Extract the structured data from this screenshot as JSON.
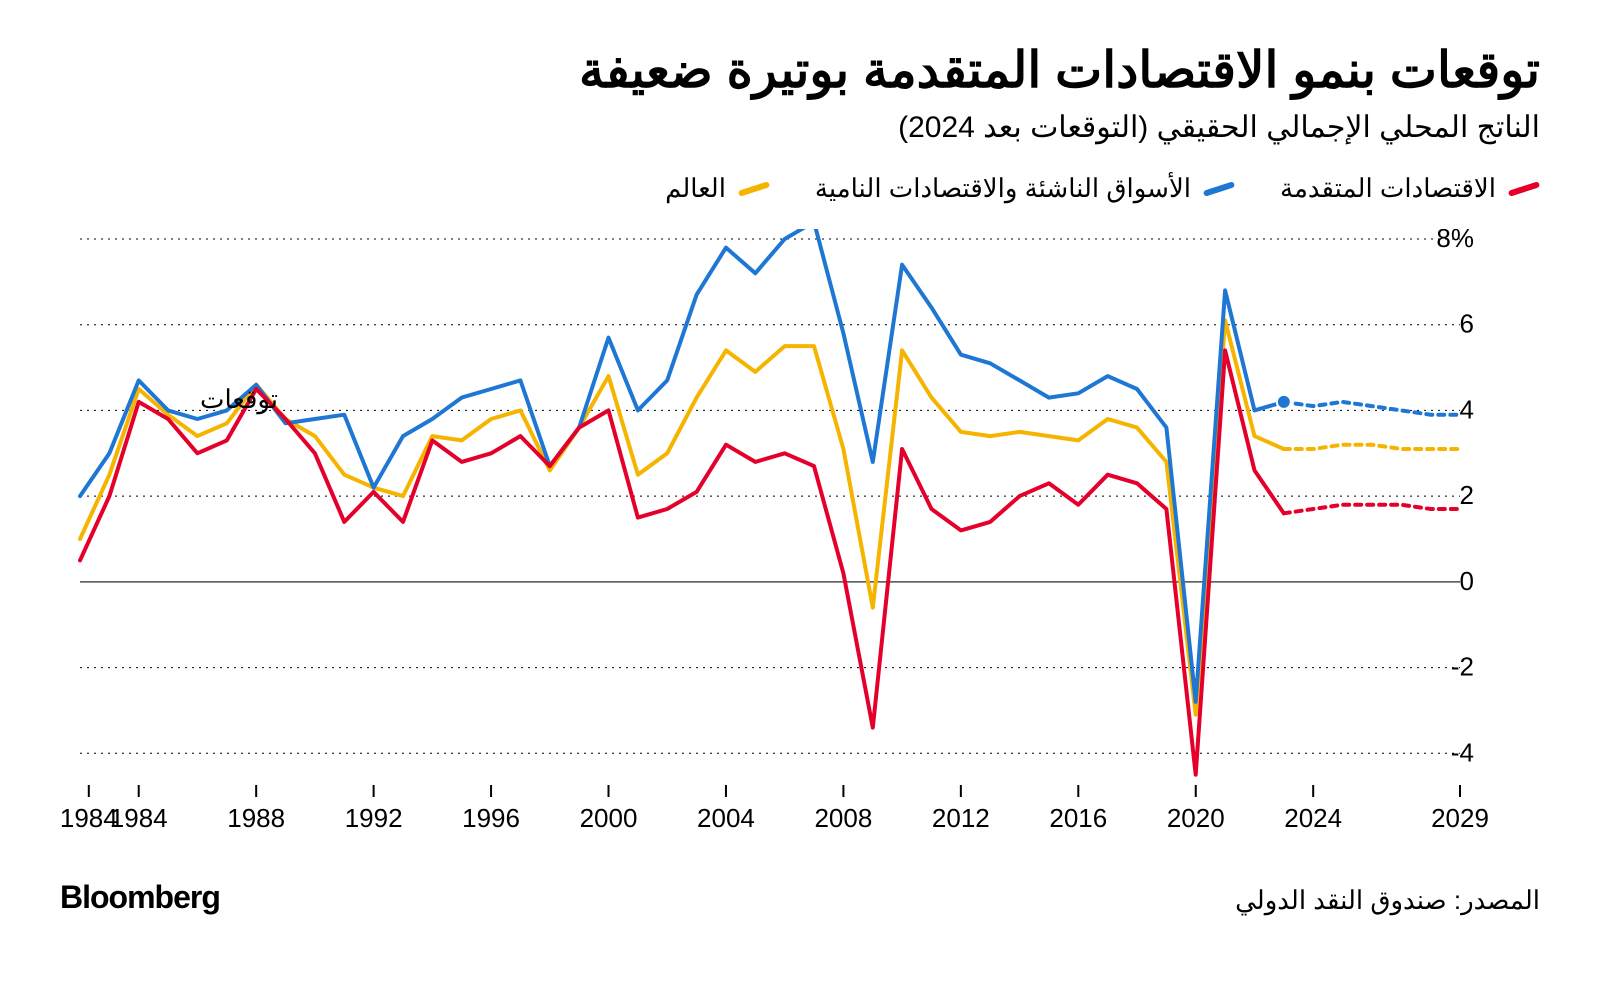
{
  "title": "توقعات بنمو الاقتصادات المتقدمة بوتيرة ضعيفة",
  "subtitle": "الناتج المحلي الإجمالي الحقيقي (التوقعات بعد 2024)",
  "legend": {
    "advanced": {
      "label": "الاقتصادات المتقدمة",
      "color": "#e4002b"
    },
    "emerging": {
      "label": "الأسواق الناشئة والاقتصادات النامية",
      "color": "#1f77d4"
    },
    "world": {
      "label": "العالم",
      "color": "#f5b400"
    }
  },
  "forecast_label": "توقعات",
  "source": "المصدر: صندوق النقد الدولي",
  "brand": "Bloomberg",
  "chart": {
    "type": "line",
    "background_color": "#ffffff",
    "grid_color": "#000000",
    "grid_dash": "2 5",
    "zero_line_color": "#4d4d4d",
    "line_width": 4,
    "forecast_dash": "6 6",
    "x_range": [
      1982,
      2029
    ],
    "y_range": [
      -4.6,
      8
    ],
    "y_ticks": [
      -4,
      -2,
      0,
      2,
      4,
      6,
      8
    ],
    "y_tick_labels": [
      "4-",
      "2-",
      "0",
      "2",
      "4",
      "6",
      "8%"
    ],
    "x_ticks": [
      1984,
      1984,
      1988,
      1992,
      1996,
      2000,
      2004,
      2008,
      2012,
      2016,
      2020,
      2024,
      2029
    ],
    "forecast_start": 2023,
    "label_fontsize": 26,
    "series": {
      "advanced": {
        "color": "#e4002b",
        "data": [
          [
            1982,
            0.5
          ],
          [
            1983,
            2.0
          ],
          [
            1984,
            4.2
          ],
          [
            1985,
            3.8
          ],
          [
            1986,
            3.0
          ],
          [
            1987,
            3.3
          ],
          [
            1988,
            4.5
          ],
          [
            1989,
            3.8
          ],
          [
            1990,
            3.0
          ],
          [
            1991,
            1.4
          ],
          [
            1992,
            2.1
          ],
          [
            1993,
            1.4
          ],
          [
            1994,
            3.3
          ],
          [
            1995,
            2.8
          ],
          [
            1996,
            3.0
          ],
          [
            1997,
            3.4
          ],
          [
            1998,
            2.7
          ],
          [
            1999,
            3.6
          ],
          [
            2000,
            4.0
          ],
          [
            2001,
            1.5
          ],
          [
            2002,
            1.7
          ],
          [
            2003,
            2.1
          ],
          [
            2004,
            3.2
          ],
          [
            2005,
            2.8
          ],
          [
            2006,
            3.0
          ],
          [
            2007,
            2.7
          ],
          [
            2008,
            0.2
          ],
          [
            2009,
            -3.4
          ],
          [
            2010,
            3.1
          ],
          [
            2011,
            1.7
          ],
          [
            2012,
            1.2
          ],
          [
            2013,
            1.4
          ],
          [
            2014,
            2.0
          ],
          [
            2015,
            2.3
          ],
          [
            2016,
            1.8
          ],
          [
            2017,
            2.5
          ],
          [
            2018,
            2.3
          ],
          [
            2019,
            1.7
          ],
          [
            2020,
            -4.5
          ],
          [
            2021,
            5.4
          ],
          [
            2022,
            2.6
          ],
          [
            2023,
            1.6
          ]
        ],
        "forecast": [
          [
            2023,
            1.6
          ],
          [
            2024,
            1.7
          ],
          [
            2025,
            1.8
          ],
          [
            2026,
            1.8
          ],
          [
            2027,
            1.8
          ],
          [
            2028,
            1.7
          ],
          [
            2029,
            1.7
          ]
        ]
      },
      "emerging": {
        "color": "#1f77d4",
        "data": [
          [
            1982,
            2.0
          ],
          [
            1983,
            3.0
          ],
          [
            1984,
            4.7
          ],
          [
            1985,
            4.0
          ],
          [
            1986,
            3.8
          ],
          [
            1987,
            4.0
          ],
          [
            1988,
            4.6
          ],
          [
            1989,
            3.7
          ],
          [
            1990,
            3.8
          ],
          [
            1991,
            3.9
          ],
          [
            1992,
            2.2
          ],
          [
            1993,
            3.4
          ],
          [
            1994,
            3.8
          ],
          [
            1995,
            4.3
          ],
          [
            1996,
            4.5
          ],
          [
            1997,
            4.7
          ],
          [
            1998,
            2.7
          ],
          [
            1999,
            3.6
          ],
          [
            2000,
            5.7
          ],
          [
            2001,
            4.0
          ],
          [
            2002,
            4.7
          ],
          [
            2003,
            6.7
          ],
          [
            2004,
            7.8
          ],
          [
            2005,
            7.2
          ],
          [
            2006,
            8.0
          ],
          [
            2007,
            8.4
          ],
          [
            2008,
            5.8
          ],
          [
            2009,
            2.8
          ],
          [
            2010,
            7.4
          ],
          [
            2011,
            6.4
          ],
          [
            2012,
            5.3
          ],
          [
            2013,
            5.1
          ],
          [
            2014,
            4.7
          ],
          [
            2015,
            4.3
          ],
          [
            2016,
            4.4
          ],
          [
            2017,
            4.8
          ],
          [
            2018,
            4.5
          ],
          [
            2019,
            3.6
          ],
          [
            2020,
            -2.8
          ],
          [
            2021,
            6.8
          ],
          [
            2022,
            4.0
          ],
          [
            2023,
            4.2
          ]
        ],
        "forecast": [
          [
            2023,
            4.2
          ],
          [
            2024,
            4.1
          ],
          [
            2025,
            4.2
          ],
          [
            2026,
            4.1
          ],
          [
            2027,
            4.0
          ],
          [
            2028,
            3.9
          ],
          [
            2029,
            3.9
          ]
        ],
        "marker_at": [
          2023,
          4.2
        ]
      },
      "world": {
        "color": "#f5b400",
        "data": [
          [
            1982,
            1.0
          ],
          [
            1983,
            2.5
          ],
          [
            1984,
            4.5
          ],
          [
            1985,
            3.9
          ],
          [
            1986,
            3.4
          ],
          [
            1987,
            3.7
          ],
          [
            1988,
            4.6
          ],
          [
            1989,
            3.8
          ],
          [
            1990,
            3.4
          ],
          [
            1991,
            2.5
          ],
          [
            1992,
            2.2
          ],
          [
            1993,
            2.0
          ],
          [
            1994,
            3.4
          ],
          [
            1995,
            3.3
          ],
          [
            1996,
            3.8
          ],
          [
            1997,
            4.0
          ],
          [
            1998,
            2.6
          ],
          [
            1999,
            3.6
          ],
          [
            2000,
            4.8
          ],
          [
            2001,
            2.5
          ],
          [
            2002,
            3.0
          ],
          [
            2003,
            4.3
          ],
          [
            2004,
            5.4
          ],
          [
            2005,
            4.9
          ],
          [
            2006,
            5.5
          ],
          [
            2007,
            5.5
          ],
          [
            2008,
            3.1
          ],
          [
            2009,
            -0.6
          ],
          [
            2010,
            5.4
          ],
          [
            2011,
            4.3
          ],
          [
            2012,
            3.5
          ],
          [
            2013,
            3.4
          ],
          [
            2014,
            3.5
          ],
          [
            2015,
            3.4
          ],
          [
            2016,
            3.3
          ],
          [
            2017,
            3.8
          ],
          [
            2018,
            3.6
          ],
          [
            2019,
            2.8
          ],
          [
            2020,
            -3.1
          ],
          [
            2021,
            6.1
          ],
          [
            2022,
            3.4
          ],
          [
            2023,
            3.1
          ]
        ],
        "forecast": [
          [
            2023,
            3.1
          ],
          [
            2024,
            3.1
          ],
          [
            2025,
            3.2
          ],
          [
            2026,
            3.2
          ],
          [
            2027,
            3.1
          ],
          [
            2028,
            3.1
          ],
          [
            2029,
            3.1
          ]
        ]
      }
    }
  }
}
